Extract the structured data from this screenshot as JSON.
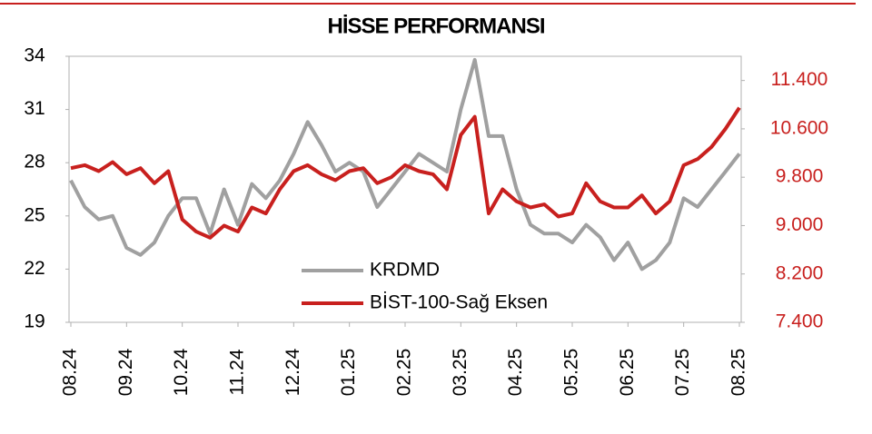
{
  "chart_data": {
    "type": "line",
    "title": "HİSSE PERFORMANSI",
    "x": [
      0,
      0.25,
      0.5,
      0.75,
      1,
      1.25,
      1.5,
      1.75,
      2,
      2.25,
      2.5,
      2.75,
      3,
      3.25,
      3.5,
      3.75,
      4,
      4.25,
      4.5,
      4.75,
      5,
      5.25,
      5.5,
      5.75,
      6,
      6.25,
      6.5,
      6.75,
      7,
      7.25,
      7.5,
      7.75,
      8,
      8.25,
      8.5,
      8.75,
      9,
      9.25,
      9.5,
      9.75,
      10,
      10.25,
      10.5,
      10.75,
      11,
      11.25,
      11.5,
      11.75,
      12
    ],
    "xlim": [
      0,
      12
    ],
    "xticks": [
      {
        "value": 0,
        "label": "08.24"
      },
      {
        "value": 1,
        "label": "09.24"
      },
      {
        "value": 2,
        "label": "10.24"
      },
      {
        "value": 3,
        "label": "11.24"
      },
      {
        "value": 4,
        "label": "12.24"
      },
      {
        "value": 5,
        "label": "01.25"
      },
      {
        "value": 6,
        "label": "02.25"
      },
      {
        "value": 7,
        "label": "03.25"
      },
      {
        "value": 8,
        "label": "04.25"
      },
      {
        "value": 9,
        "label": "05.25"
      },
      {
        "value": 10,
        "label": "06.25"
      },
      {
        "value": 11,
        "label": "07.25"
      },
      {
        "value": 12,
        "label": "08.25"
      }
    ],
    "ylim": [
      19,
      34
    ],
    "yticks": [
      19,
      22,
      25,
      28,
      31,
      34
    ],
    "y2lim": [
      7400,
      11800
    ],
    "y2ticks": [
      {
        "value": 7400,
        "label": "7.400"
      },
      {
        "value": 8200,
        "label": "8.200"
      },
      {
        "value": 9000,
        "label": "9.000"
      },
      {
        "value": 9800,
        "label": "9.800"
      },
      {
        "value": 10600,
        "label": "10.600"
      },
      {
        "value": 11400,
        "label": "11.400"
      }
    ],
    "y2color": "#c8201e",
    "series": [
      {
        "name": "KRDMD",
        "color": "#a0a0a0",
        "values": [
          27.0,
          25.5,
          24.8,
          25.0,
          23.2,
          22.8,
          23.5,
          25.0,
          26.0,
          26.0,
          24.0,
          26.5,
          24.5,
          26.8,
          26.0,
          27.0,
          28.5,
          30.3,
          29.0,
          27.5,
          28.0,
          27.5,
          25.5,
          26.5,
          27.5,
          28.5,
          28.0,
          27.5,
          31.0,
          33.8,
          29.5,
          29.5,
          26.5,
          24.5,
          24.0,
          24.0,
          23.5,
          24.5,
          23.8,
          22.5,
          23.5,
          22.0,
          22.5,
          23.5,
          26.0,
          25.5,
          26.5,
          27.5,
          28.5
        ]
      },
      {
        "name": "BİST-100-Sağ Eksen",
        "color": "#c8201e",
        "axis": "y2",
        "values": [
          9950,
          10000,
          9900,
          10050,
          9850,
          9950,
          9700,
          9900,
          9100,
          8900,
          8800,
          9000,
          8900,
          9300,
          9200,
          9600,
          9900,
          10000,
          9850,
          9750,
          9900,
          9950,
          9700,
          9800,
          10000,
          9900,
          9850,
          9600,
          10500,
          10800,
          9200,
          9600,
          9400,
          9300,
          9350,
          9150,
          9200,
          9700,
          9400,
          9300,
          9300,
          9500,
          9200,
          9400,
          10000,
          10100,
          10300,
          10600,
          10950
        ]
      }
    ]
  }
}
